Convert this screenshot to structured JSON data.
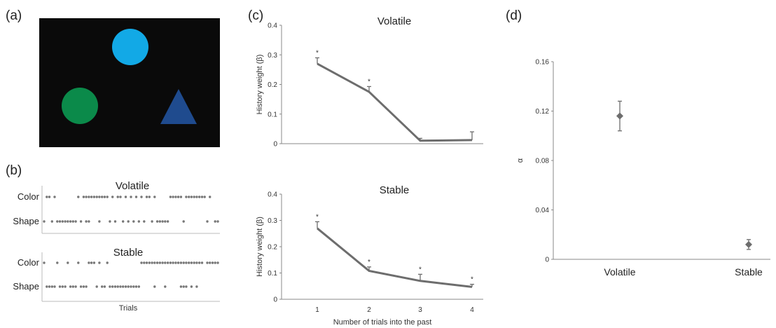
{
  "panel_labels": {
    "a": "(a)",
    "b": "(b)",
    "c": "(c)",
    "d": "(d)"
  },
  "panel_a": {
    "background_color": "#0a0a0a",
    "shapes": [
      {
        "name": "blue-circle",
        "kind": "circle",
        "color": "#12a9e6"
      },
      {
        "name": "green-circle",
        "kind": "circle",
        "color": "#0b8a4a"
      },
      {
        "name": "blue-triangle",
        "kind": "triangle",
        "color": "#1f4b8e"
      }
    ]
  },
  "panel_b": {
    "xlabel": "Trials",
    "row_labels": [
      "Color",
      "Shape"
    ],
    "blocks": [
      {
        "title": "Volatile",
        "color_trials": [
          1,
          2,
          4,
          13,
          15,
          16,
          17,
          18,
          19,
          20,
          21,
          22,
          23,
          24,
          26,
          28,
          29,
          31,
          33,
          35,
          37,
          39,
          40,
          42,
          48,
          49,
          50,
          51,
          52,
          54,
          55,
          56,
          57,
          58,
          59,
          60,
          61,
          63
        ],
        "shape_trials": [
          0,
          3,
          5,
          6,
          7,
          8,
          9,
          10,
          11,
          12,
          14,
          16,
          17,
          21,
          25,
          27,
          30,
          32,
          34,
          36,
          38,
          41,
          43,
          44,
          45,
          46,
          47,
          53,
          62,
          65,
          66
        ]
      },
      {
        "title": "Stable",
        "color_trials": [
          0,
          5,
          9,
          13,
          17,
          18,
          19,
          21,
          24,
          37,
          38,
          39,
          40,
          41,
          42,
          43,
          44,
          45,
          46,
          47,
          48,
          49,
          50,
          51,
          52,
          53,
          54,
          55,
          56,
          57,
          58,
          59,
          60,
          62,
          63,
          64,
          65,
          66
        ],
        "shape_trials": [
          1,
          2,
          3,
          4,
          6,
          7,
          8,
          10,
          11,
          12,
          14,
          15,
          16,
          20,
          22,
          23,
          25,
          26,
          27,
          28,
          29,
          30,
          31,
          32,
          33,
          34,
          35,
          36,
          42,
          46,
          52,
          53,
          54,
          56,
          58
        ]
      }
    ],
    "n_trials": 67
  },
  "chart_data": [
    {
      "panel": "c-top",
      "type": "line",
      "title": "Volatile",
      "xlabel": "",
      "ylabel": "History weight (β)",
      "x": [
        1,
        2,
        3,
        4
      ],
      "values": [
        0.27,
        0.175,
        0.01,
        0.012
      ],
      "errors": [
        0.02,
        0.018,
        0.008,
        0.028
      ],
      "significance": [
        "*",
        "*",
        "",
        ""
      ],
      "ylim": [
        0,
        0.4
      ],
      "yticks": [
        "0",
        "0.1",
        "0.2",
        "0.3",
        "0.4"
      ],
      "xticks": [],
      "line_color": "#6d6d6d"
    },
    {
      "panel": "c-bottom",
      "type": "line",
      "title": "Stable",
      "xlabel": "Number of trials into the past",
      "ylabel": "History weight (β)",
      "x": [
        1,
        2,
        3,
        4
      ],
      "values": [
        0.27,
        0.108,
        0.07,
        0.047
      ],
      "errors": [
        0.025,
        0.015,
        0.025,
        0.01
      ],
      "significance": [
        "*",
        "*",
        "*",
        "*"
      ],
      "ylim": [
        0,
        0.4
      ],
      "yticks": [
        "0",
        "0.1",
        "0.2",
        "0.3",
        "0.4"
      ],
      "xticks": [
        "1",
        "2",
        "3",
        "4"
      ],
      "line_color": "#6d6d6d"
    },
    {
      "panel": "d",
      "type": "scatter",
      "title": "",
      "xlabel": "",
      "ylabel": "α",
      "categories": [
        "Volatile",
        "Stable"
      ],
      "values": [
        0.116,
        0.012
      ],
      "errors": [
        0.012,
        0.004
      ],
      "ylim": [
        0,
        0.16
      ],
      "yticks": [
        "0",
        "0.04",
        "0.08",
        "0.12",
        "0.16"
      ],
      "marker_color": "#6d6d6d"
    }
  ]
}
